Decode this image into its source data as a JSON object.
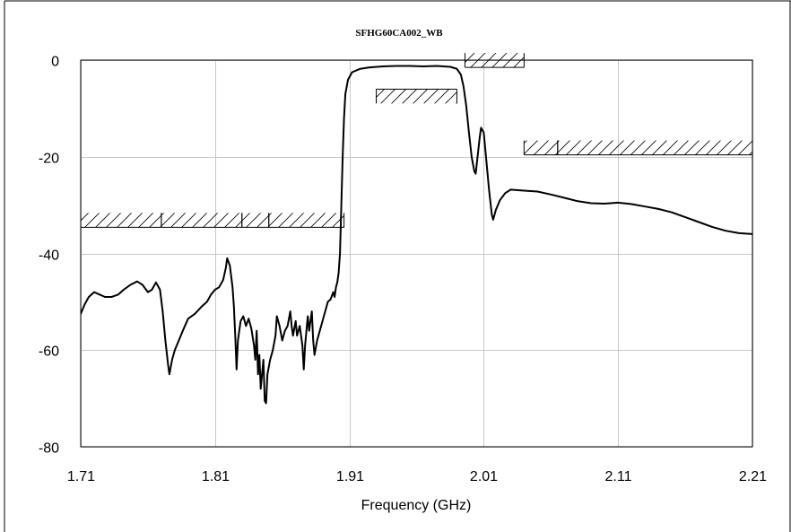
{
  "chart_data": {
    "type": "line",
    "title": "SFHG60CA002_WB",
    "xlabel": "Frequency (GHz)",
    "ylabel": "",
    "xlim": [
      1.71,
      2.21
    ],
    "ylim": [
      -80,
      0
    ],
    "x_ticks": [
      "1.71",
      "1.81",
      "1.91",
      "2.01",
      "2.11",
      "2.21"
    ],
    "y_ticks": [
      "0",
      "-20",
      "-40",
      "-60",
      "-80"
    ],
    "grid": true,
    "legend": "none",
    "line_color": "#000000",
    "series": [
      {
        "points": [
          [
            1.71,
            -52.5
          ],
          [
            1.713,
            -50.5
          ],
          [
            1.716,
            -49.0
          ],
          [
            1.72,
            -48.0
          ],
          [
            1.724,
            -48.5
          ],
          [
            1.728,
            -49.0
          ],
          [
            1.733,
            -49.0
          ],
          [
            1.738,
            -48.5
          ],
          [
            1.742,
            -47.5
          ],
          [
            1.747,
            -46.5
          ],
          [
            1.752,
            -45.8
          ],
          [
            1.756,
            -46.5
          ],
          [
            1.76,
            -48.0
          ],
          [
            1.763,
            -47.5
          ],
          [
            1.766,
            -46.0
          ],
          [
            1.769,
            -47.5
          ],
          [
            1.771,
            -52.0
          ],
          [
            1.773,
            -58.0
          ],
          [
            1.775,
            -63.0
          ],
          [
            1.776,
            -65.0
          ],
          [
            1.778,
            -62.0
          ],
          [
            1.78,
            -60.0
          ],
          [
            1.783,
            -58.0
          ],
          [
            1.786,
            -56.0
          ],
          [
            1.79,
            -53.5
          ],
          [
            1.795,
            -52.5
          ],
          [
            1.8,
            -51.0
          ],
          [
            1.804,
            -50.0
          ],
          [
            1.807,
            -48.5
          ],
          [
            1.81,
            -47.5
          ],
          [
            1.813,
            -47.0
          ],
          [
            1.816,
            -45.5
          ],
          [
            1.818,
            -43.0
          ],
          [
            1.819,
            -41.0
          ],
          [
            1.821,
            -42.5
          ],
          [
            1.823,
            -47.0
          ],
          [
            1.824,
            -51.0
          ],
          [
            1.825,
            -57.0
          ],
          [
            1.826,
            -64.0
          ],
          [
            1.827,
            -58.0
          ],
          [
            1.829,
            -54.0
          ],
          [
            1.831,
            -53.0
          ],
          [
            1.833,
            -55.0
          ],
          [
            1.835,
            -53.5
          ],
          [
            1.837,
            -55.5
          ],
          [
            1.839,
            -59.0
          ],
          [
            1.84,
            -62.0
          ],
          [
            1.841,
            -56.0
          ],
          [
            1.842,
            -65.0
          ],
          [
            1.843,
            -61.0
          ],
          [
            1.844,
            -68.0
          ],
          [
            1.846,
            -62.0
          ],
          [
            1.847,
            -70.5
          ],
          [
            1.848,
            -71.0
          ],
          [
            1.849,
            -65.0
          ],
          [
            1.851,
            -62.0
          ],
          [
            1.853,
            -60.0
          ],
          [
            1.855,
            -57.0
          ],
          [
            1.856,
            -53.0
          ],
          [
            1.858,
            -55.0
          ],
          [
            1.86,
            -58.0
          ],
          [
            1.862,
            -56.0
          ],
          [
            1.864,
            -55.0
          ],
          [
            1.866,
            -52.0
          ],
          [
            1.867,
            -55.0
          ],
          [
            1.868,
            -57.0
          ],
          [
            1.87,
            -54.0
          ],
          [
            1.871,
            -57.0
          ],
          [
            1.873,
            -55.0
          ],
          [
            1.875,
            -59.0
          ],
          [
            1.876,
            -64.0
          ],
          [
            1.877,
            -59.0
          ],
          [
            1.879,
            -53.0
          ],
          [
            1.88,
            -56.0
          ],
          [
            1.882,
            -52.0
          ],
          [
            1.883,
            -58.0
          ],
          [
            1.884,
            -61.0
          ],
          [
            1.886,
            -58.0
          ],
          [
            1.888,
            -56.0
          ],
          [
            1.89,
            -54.0
          ],
          [
            1.892,
            -52.0
          ],
          [
            1.894,
            -50.0
          ],
          [
            1.896,
            -49.5
          ],
          [
            1.898,
            -48.0
          ],
          [
            1.899,
            -49.0
          ],
          [
            1.9,
            -47.0
          ],
          [
            1.901,
            -46.0
          ],
          [
            1.902,
            -44.0
          ],
          [
            1.903,
            -40.0
          ],
          [
            1.904,
            -30.0
          ],
          [
            1.905,
            -20.0
          ],
          [
            1.906,
            -12.0
          ],
          [
            1.907,
            -7.0
          ],
          [
            1.909,
            -4.0
          ],
          [
            1.912,
            -2.5
          ],
          [
            1.918,
            -1.8
          ],
          [
            1.925,
            -1.5
          ],
          [
            1.935,
            -1.3
          ],
          [
            1.945,
            -1.2
          ],
          [
            1.955,
            -1.2
          ],
          [
            1.965,
            -1.3
          ],
          [
            1.975,
            -1.2
          ],
          [
            1.985,
            -1.4
          ],
          [
            1.99,
            -1.8
          ],
          [
            1.993,
            -3.0
          ],
          [
            1.995,
            -5.5
          ],
          [
            1.997,
            -9.5
          ],
          [
            1.999,
            -15.0
          ],
          [
            2.001,
            -20.0
          ],
          [
            2.003,
            -23.0
          ],
          [
            2.004,
            -23.5
          ],
          [
            2.005,
            -21.0
          ],
          [
            2.007,
            -16.0
          ],
          [
            2.008,
            -14.0
          ],
          [
            2.01,
            -15.0
          ],
          [
            2.012,
            -21.0
          ],
          [
            2.014,
            -27.0
          ],
          [
            2.016,
            -32.0
          ],
          [
            2.017,
            -33.0
          ],
          [
            2.019,
            -31.0
          ],
          [
            2.022,
            -29.0
          ],
          [
            2.026,
            -27.5
          ],
          [
            2.03,
            -26.8
          ],
          [
            2.04,
            -27.0
          ],
          [
            2.05,
            -27.2
          ],
          [
            2.06,
            -27.8
          ],
          [
            2.07,
            -28.5
          ],
          [
            2.08,
            -29.2
          ],
          [
            2.09,
            -29.6
          ],
          [
            2.1,
            -29.7
          ],
          [
            2.11,
            -29.5
          ],
          [
            2.12,
            -29.8
          ],
          [
            2.13,
            -30.3
          ],
          [
            2.14,
            -30.8
          ],
          [
            2.15,
            -31.5
          ],
          [
            2.16,
            -32.5
          ],
          [
            2.17,
            -33.5
          ],
          [
            2.18,
            -34.5
          ],
          [
            2.19,
            -35.3
          ],
          [
            2.2,
            -35.8
          ],
          [
            2.21,
            -36.0
          ]
        ]
      }
    ],
    "spec_masks": [
      {
        "x": [
          1.71,
          1.77
        ],
        "y": -34.6,
        "side": "above"
      },
      {
        "x": [
          1.77,
          1.83
        ],
        "y": -34.6,
        "side": "above"
      },
      {
        "x": [
          1.83,
          1.85
        ],
        "y": -34.6,
        "side": "above"
      },
      {
        "x": [
          1.85,
          1.906
        ],
        "y": -34.6,
        "side": "above"
      },
      {
        "x": [
          1.93,
          1.99
        ],
        "y": -6.0,
        "side": "below"
      },
      {
        "x": [
          1.996,
          2.04
        ],
        "y": -1.5,
        "side": "above"
      },
      {
        "x": [
          2.04,
          2.065
        ],
        "y": -19.6,
        "side": "above"
      },
      {
        "x": [
          2.065,
          2.21
        ],
        "y": -19.6,
        "side": "above"
      }
    ]
  }
}
